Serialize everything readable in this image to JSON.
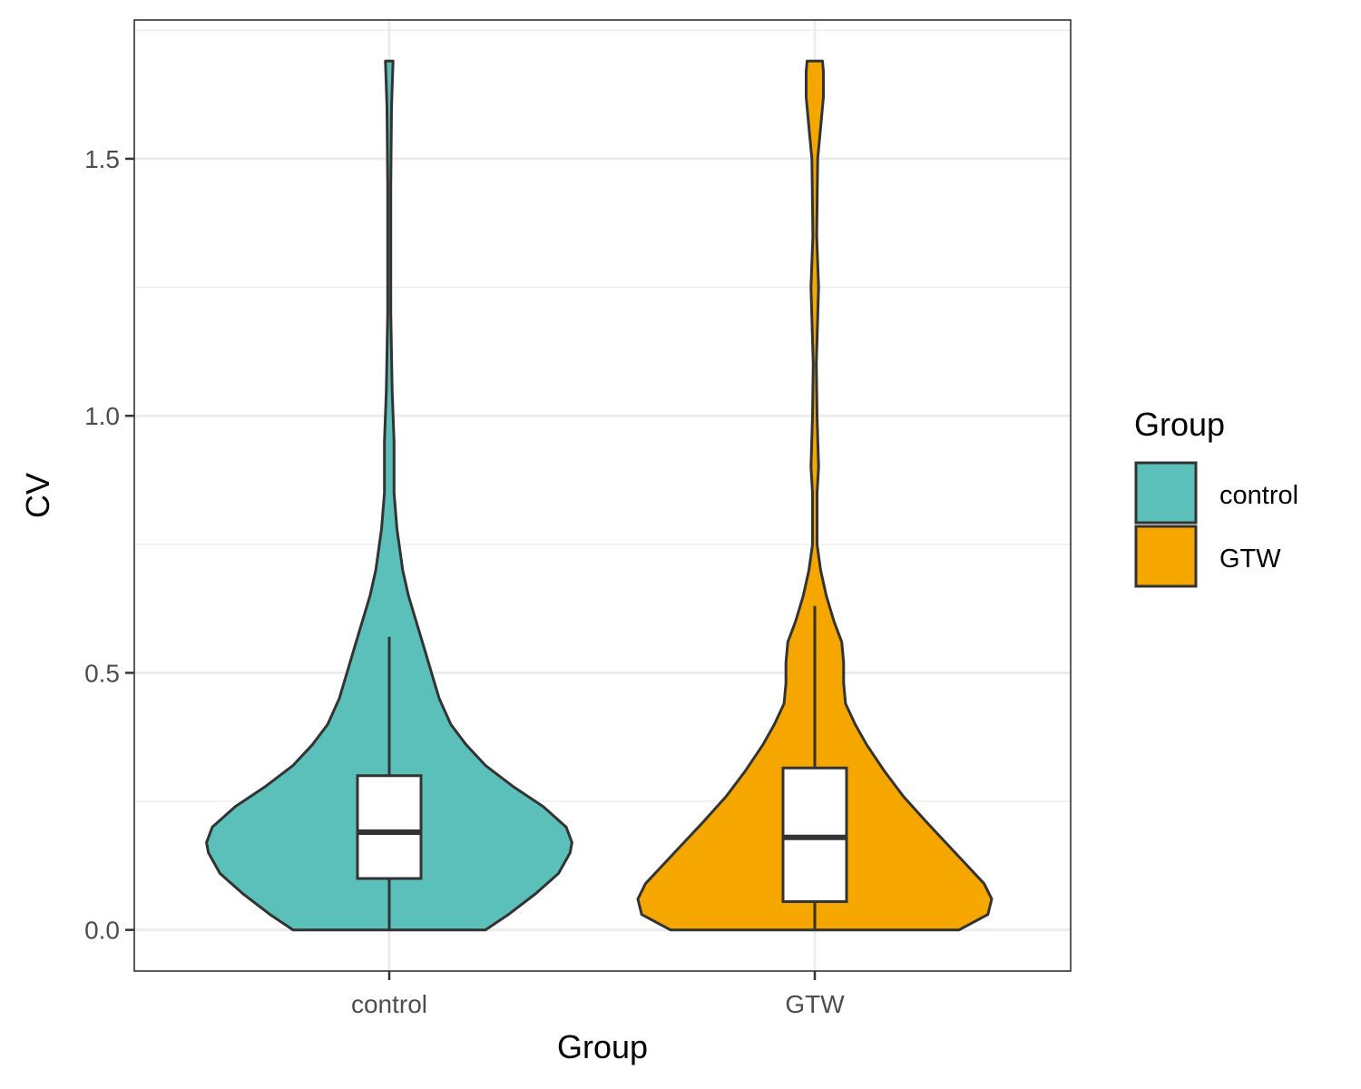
{
  "chart_data": {
    "type": "violin",
    "xlabel": "Group",
    "ylabel": "CV",
    "ylim": [
      -0.08,
      1.77
    ],
    "y_ticks": [
      0.0,
      0.5,
      1.0,
      1.5
    ],
    "y_tick_labels": [
      "0.0",
      "0.5",
      "1.0",
      "1.5"
    ],
    "y_minor_ticks": [
      0.25,
      0.75,
      1.25,
      1.75
    ],
    "categories": [
      "control",
      "GTW"
    ],
    "grid": true,
    "legend": {
      "title": "Group",
      "placement": "right",
      "entries": [
        {
          "label": "control",
          "color": "#5BBFBA"
        },
        {
          "label": "GTW",
          "color": "#F5A700"
        }
      ]
    },
    "series": [
      {
        "category": "control",
        "color": "#5BBFBA",
        "box": {
          "lower_whisker": 0.0,
          "q1": 0.1,
          "median": 0.19,
          "q3": 0.3,
          "upper_whisker": 0.57
        },
        "density": [
          [
            0.0,
            0.5
          ],
          [
            0.03,
            0.62
          ],
          [
            0.07,
            0.76
          ],
          [
            0.11,
            0.88
          ],
          [
            0.15,
            0.94
          ],
          [
            0.17,
            0.95
          ],
          [
            0.2,
            0.92
          ],
          [
            0.24,
            0.8
          ],
          [
            0.28,
            0.64
          ],
          [
            0.32,
            0.5
          ],
          [
            0.36,
            0.4
          ],
          [
            0.4,
            0.32
          ],
          [
            0.45,
            0.26
          ],
          [
            0.5,
            0.22
          ],
          [
            0.55,
            0.18
          ],
          [
            0.6,
            0.14
          ],
          [
            0.65,
            0.1
          ],
          [
            0.7,
            0.07
          ],
          [
            0.78,
            0.04
          ],
          [
            0.85,
            0.025
          ],
          [
            0.95,
            0.025
          ],
          [
            1.05,
            0.015
          ],
          [
            1.2,
            0.008
          ],
          [
            1.45,
            0.008
          ],
          [
            1.6,
            0.012
          ],
          [
            1.69,
            0.02
          ]
        ]
      },
      {
        "category": "GTW",
        "color": "#F5A700",
        "box": {
          "lower_whisker": 0.0,
          "q1": 0.055,
          "median": 0.18,
          "q3": 0.315,
          "upper_whisker": 0.63
        },
        "density": [
          [
            0.0,
            0.75
          ],
          [
            0.03,
            0.9
          ],
          [
            0.06,
            0.92
          ],
          [
            0.09,
            0.88
          ],
          [
            0.13,
            0.78
          ],
          [
            0.17,
            0.68
          ],
          [
            0.21,
            0.58
          ],
          [
            0.26,
            0.46
          ],
          [
            0.31,
            0.36
          ],
          [
            0.36,
            0.27
          ],
          [
            0.4,
            0.21
          ],
          [
            0.44,
            0.16
          ],
          [
            0.48,
            0.15
          ],
          [
            0.52,
            0.15
          ],
          [
            0.56,
            0.14
          ],
          [
            0.6,
            0.1
          ],
          [
            0.65,
            0.06
          ],
          [
            0.7,
            0.03
          ],
          [
            0.75,
            0.012
          ],
          [
            0.85,
            0.012
          ],
          [
            0.9,
            0.02
          ],
          [
            1.0,
            0.012
          ],
          [
            1.1,
            0.008
          ],
          [
            1.25,
            0.02
          ],
          [
            1.35,
            0.01
          ],
          [
            1.5,
            0.015
          ],
          [
            1.56,
            0.03
          ],
          [
            1.62,
            0.045
          ],
          [
            1.67,
            0.045
          ],
          [
            1.69,
            0.04
          ]
        ]
      }
    ]
  }
}
